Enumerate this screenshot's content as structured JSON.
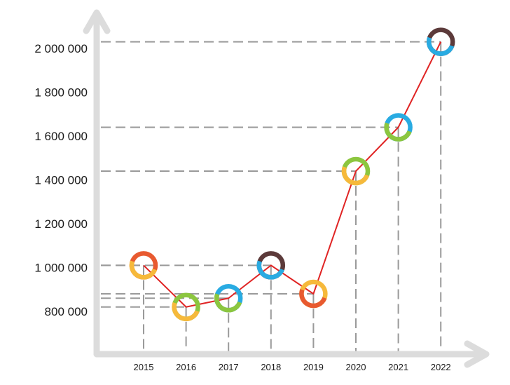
{
  "chart_data": {
    "type": "line",
    "title": "",
    "xlabel": "",
    "ylabel": "",
    "categories": [
      "2015",
      "2016",
      "2017",
      "2018",
      "2019",
      "2020",
      "2021",
      "2022"
    ],
    "values": [
      1010000,
      820000,
      860000,
      1010000,
      880000,
      1440000,
      1640000,
      2030000
    ],
    "ylim": [
      700000,
      2100000
    ],
    "yticks": [
      800000,
      1000000,
      1200000,
      1400000,
      1600000,
      1800000,
      2000000
    ],
    "ytick_labels": [
      "800 000",
      "1 000 000",
      "1 200 000",
      "1 400 000",
      "1 600 000",
      "1 800 000",
      "2 000 000"
    ],
    "grid": false,
    "guide_lines": "dashed drop lines from each point to both axes",
    "colors": {
      "line": "#e02424",
      "axis": "#dcdcdc",
      "guide": "#9a9a9a",
      "orange": "#e85a30",
      "yellow": "#f6b93b",
      "green": "#8cc63f",
      "blue": "#29abe2",
      "brown": "#5c3a3a"
    },
    "markers": [
      [
        "orange",
        "yellow"
      ],
      [
        "green",
        "yellow"
      ],
      [
        "blue",
        "green"
      ],
      [
        "brown",
        "blue"
      ],
      [
        "yellow",
        "orange"
      ],
      [
        "green",
        "yellow"
      ],
      [
        "blue",
        "green"
      ],
      [
        "brown",
        "blue"
      ]
    ]
  }
}
